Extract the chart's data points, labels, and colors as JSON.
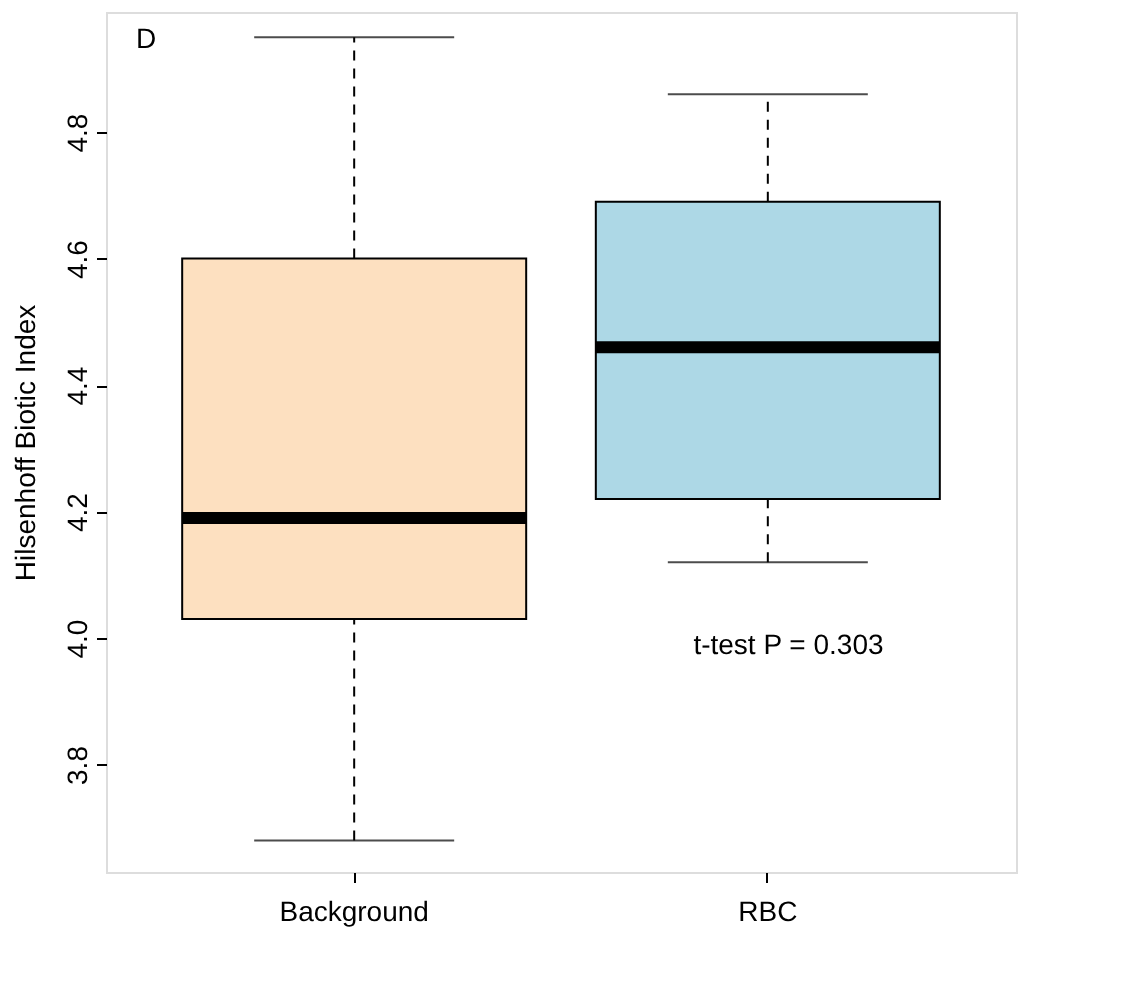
{
  "chart_data": {
    "type": "box",
    "ylabel": "Hilsenhoff Biotic Index",
    "categories": [
      "Background",
      "RBC"
    ],
    "colors": [
      "#fde0c0",
      "#add8e6"
    ],
    "boxes": [
      {
        "low": 3.68,
        "q1": 4.03,
        "median": 4.19,
        "q3": 4.6,
        "high": 4.95
      },
      {
        "low": 4.12,
        "q1": 4.22,
        "median": 4.46,
        "q3": 4.69,
        "high": 4.86
      }
    ],
    "ylim": [
      3.63,
      4.99
    ],
    "yticks": [
      3.8,
      {
        "value": 4,
        "label": "4.0"
      },
      4.2,
      4.4,
      4.6,
      4.8
    ],
    "grid": false,
    "annotations": [
      "D",
      "t-test P = 0.303"
    ]
  }
}
